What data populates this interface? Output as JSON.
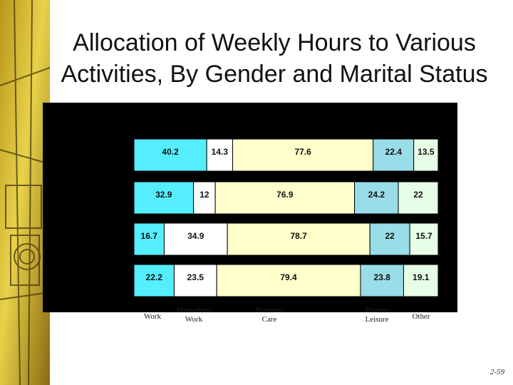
{
  "slide": {
    "title_line1": "Allocation of Weekly Hours to Various",
    "title_line2": "Activities, By Gender and Marital Status",
    "page_number": "2-59"
  },
  "colors": {
    "panel_background": "#000000",
    "work": "#55eeff",
    "household_work": "#ffffff",
    "personal_care": "#ffffcc",
    "passive_leisure": "#99dde8",
    "other": "#e6ffe6"
  },
  "chart_data": {
    "type": "bar",
    "orientation": "horizontal",
    "stacked": true,
    "title": "",
    "xlabel": "",
    "ylabel": "",
    "categories": [
      "",
      "",
      "",
      ""
    ],
    "series": [
      {
        "name": "Work",
        "values": [
          40.2,
          32.9,
          16.7,
          22.2
        ],
        "color": "#55eeff"
      },
      {
        "name": "Household Work",
        "values": [
          14.3,
          12,
          34.9,
          23.5
        ],
        "color": "#ffffff"
      },
      {
        "name": "Personal Care",
        "values": [
          77.6,
          76.9,
          78.7,
          79.4
        ],
        "color": "#ffffcc"
      },
      {
        "name": "Passive Leisure",
        "values": [
          22.4,
          24.2,
          22,
          23.8
        ],
        "color": "#99dde8"
      },
      {
        "name": "Other",
        "values": [
          13.5,
          22,
          15.7,
          19.1
        ],
        "color": "#e6ffe6"
      }
    ],
    "value_labels": [
      [
        "40.2",
        "14.3",
        "77.6",
        "22.4",
        "13.5"
      ],
      [
        "32.9",
        "12",
        "76.9",
        "24.2",
        "22"
      ],
      [
        "16.7",
        "34.9",
        "78.7",
        "22",
        "15.7"
      ],
      [
        "22.2",
        "23.5",
        "79.4",
        "23.8",
        "19.1"
      ]
    ],
    "xlim": [
      0,
      168
    ],
    "grid": false,
    "legend": "bottom"
  }
}
